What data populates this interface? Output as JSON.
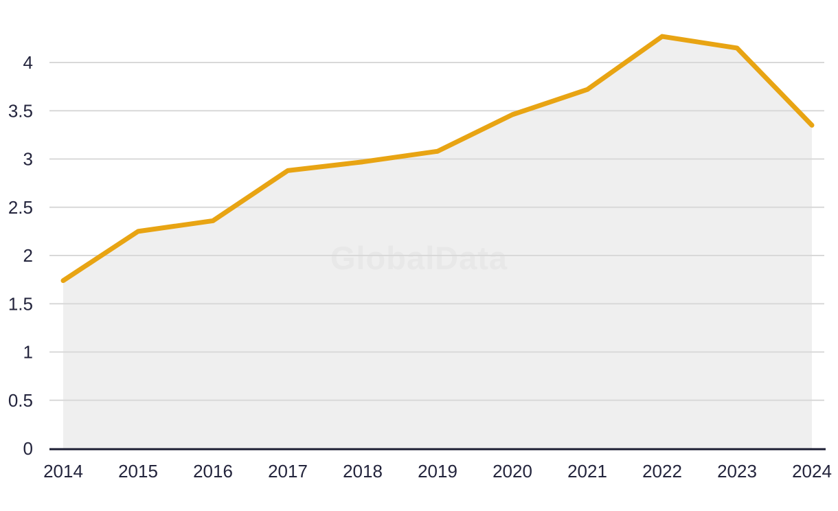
{
  "watermark": "GlobalData",
  "colors": {
    "background": "#FFFFFF",
    "line": "#E8A413",
    "area_fill": "#EFEFEF",
    "gridline": "#D8D8D8",
    "axis_line": "#1C1E33",
    "tick_label": "#23243C",
    "watermark": "#E8E8E8"
  },
  "chart_data": {
    "type": "area",
    "title": "",
    "xlabel": "",
    "ylabel": "",
    "categories": [
      "2014",
      "2015",
      "2016",
      "2017",
      "2018",
      "2019",
      "2020",
      "2021",
      "2022",
      "2023",
      "2024"
    ],
    "series": [
      {
        "name": "value",
        "values": [
          1.74,
          2.25,
          2.36,
          2.88,
          2.97,
          3.08,
          3.46,
          3.72,
          4.27,
          4.15,
          3.35
        ]
      }
    ],
    "ylim": [
      0,
      4.4
    ],
    "y_ticks": [
      0,
      0.5,
      1,
      1.5,
      2,
      2.5,
      3,
      3.5,
      4
    ],
    "grid": true,
    "legend_position": "none"
  }
}
